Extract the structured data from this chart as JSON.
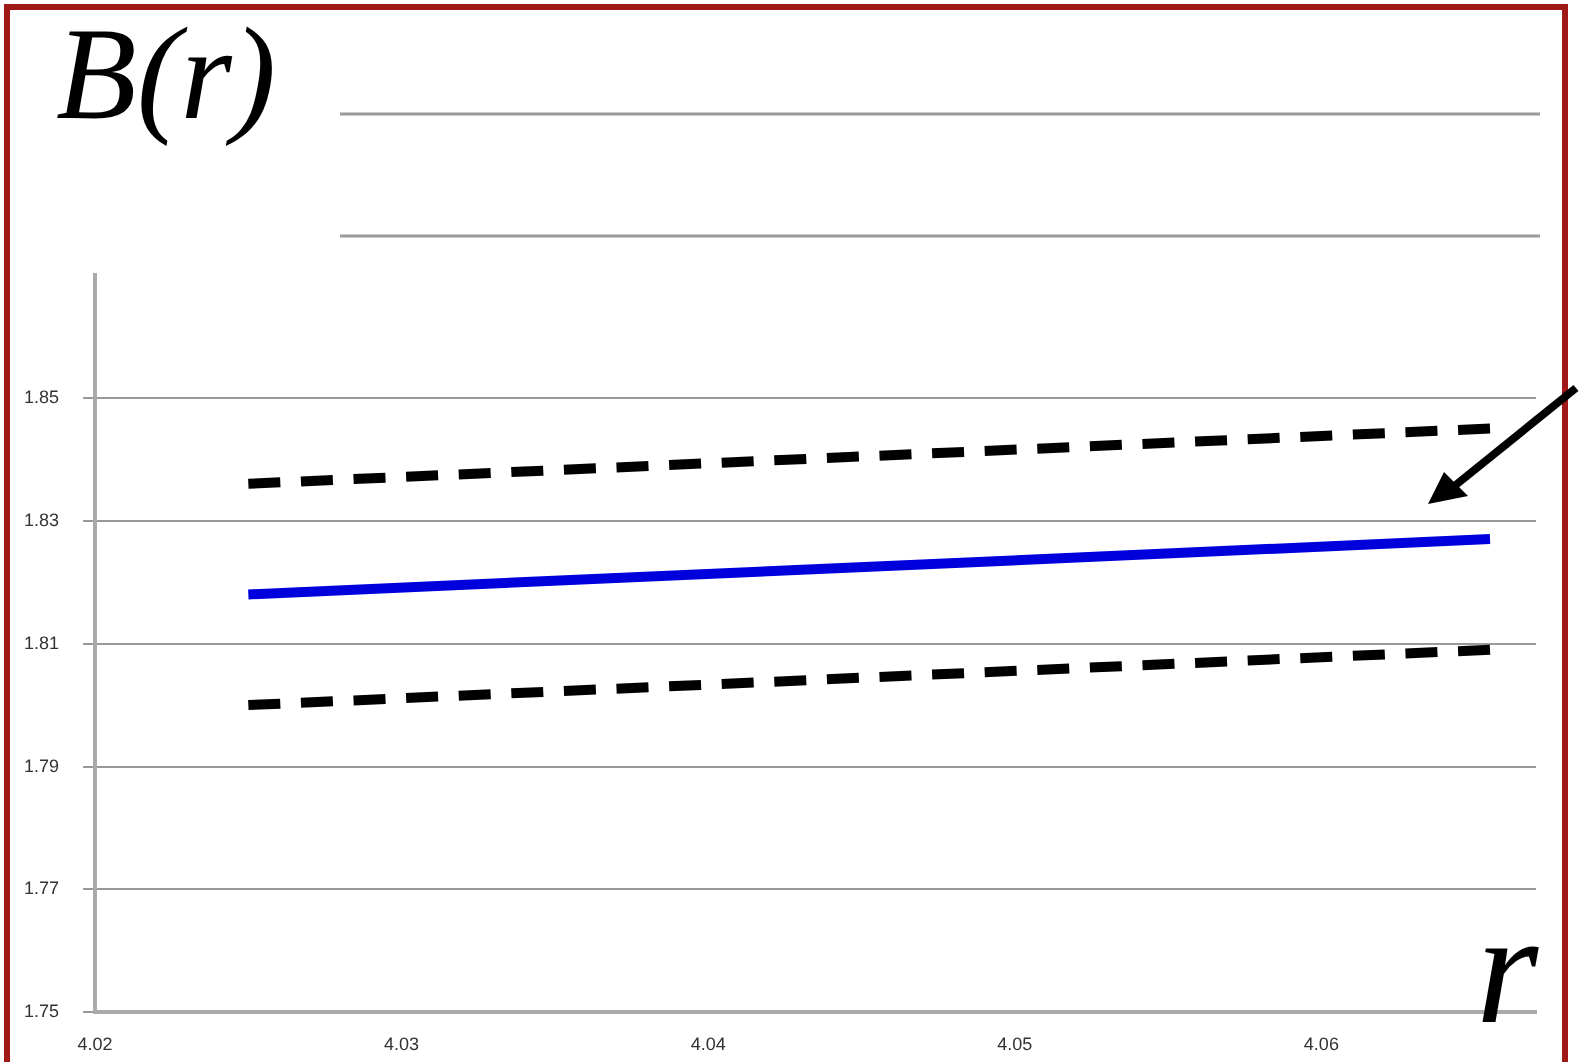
{
  "chart_data": {
    "type": "line",
    "xlabel": "r",
    "ylabel": "B(r)",
    "xlim": [
      4.02,
      4.067
    ],
    "xticks": [
      4.02,
      4.03,
      4.04,
      4.05,
      4.06
    ],
    "ylim": [
      1.75,
      1.87
    ],
    "yticks": [
      1.75,
      1.77,
      1.79,
      1.81,
      1.83,
      1.85
    ],
    "x": [
      4.025,
      4.0655
    ],
    "grid": "y",
    "legend": false,
    "marker": "none",
    "series": [
      {
        "color": "#000000",
        "line_style": "dashed",
        "values": [
          1.836,
          1.845
        ]
      },
      {
        "color": "#0000dd",
        "line_style": "solid",
        "values": [
          1.818,
          1.827
        ]
      },
      {
        "color": "#000000",
        "line_style": "dashed",
        "values": [
          1.8,
          1.809
        ]
      }
    ]
  }
}
